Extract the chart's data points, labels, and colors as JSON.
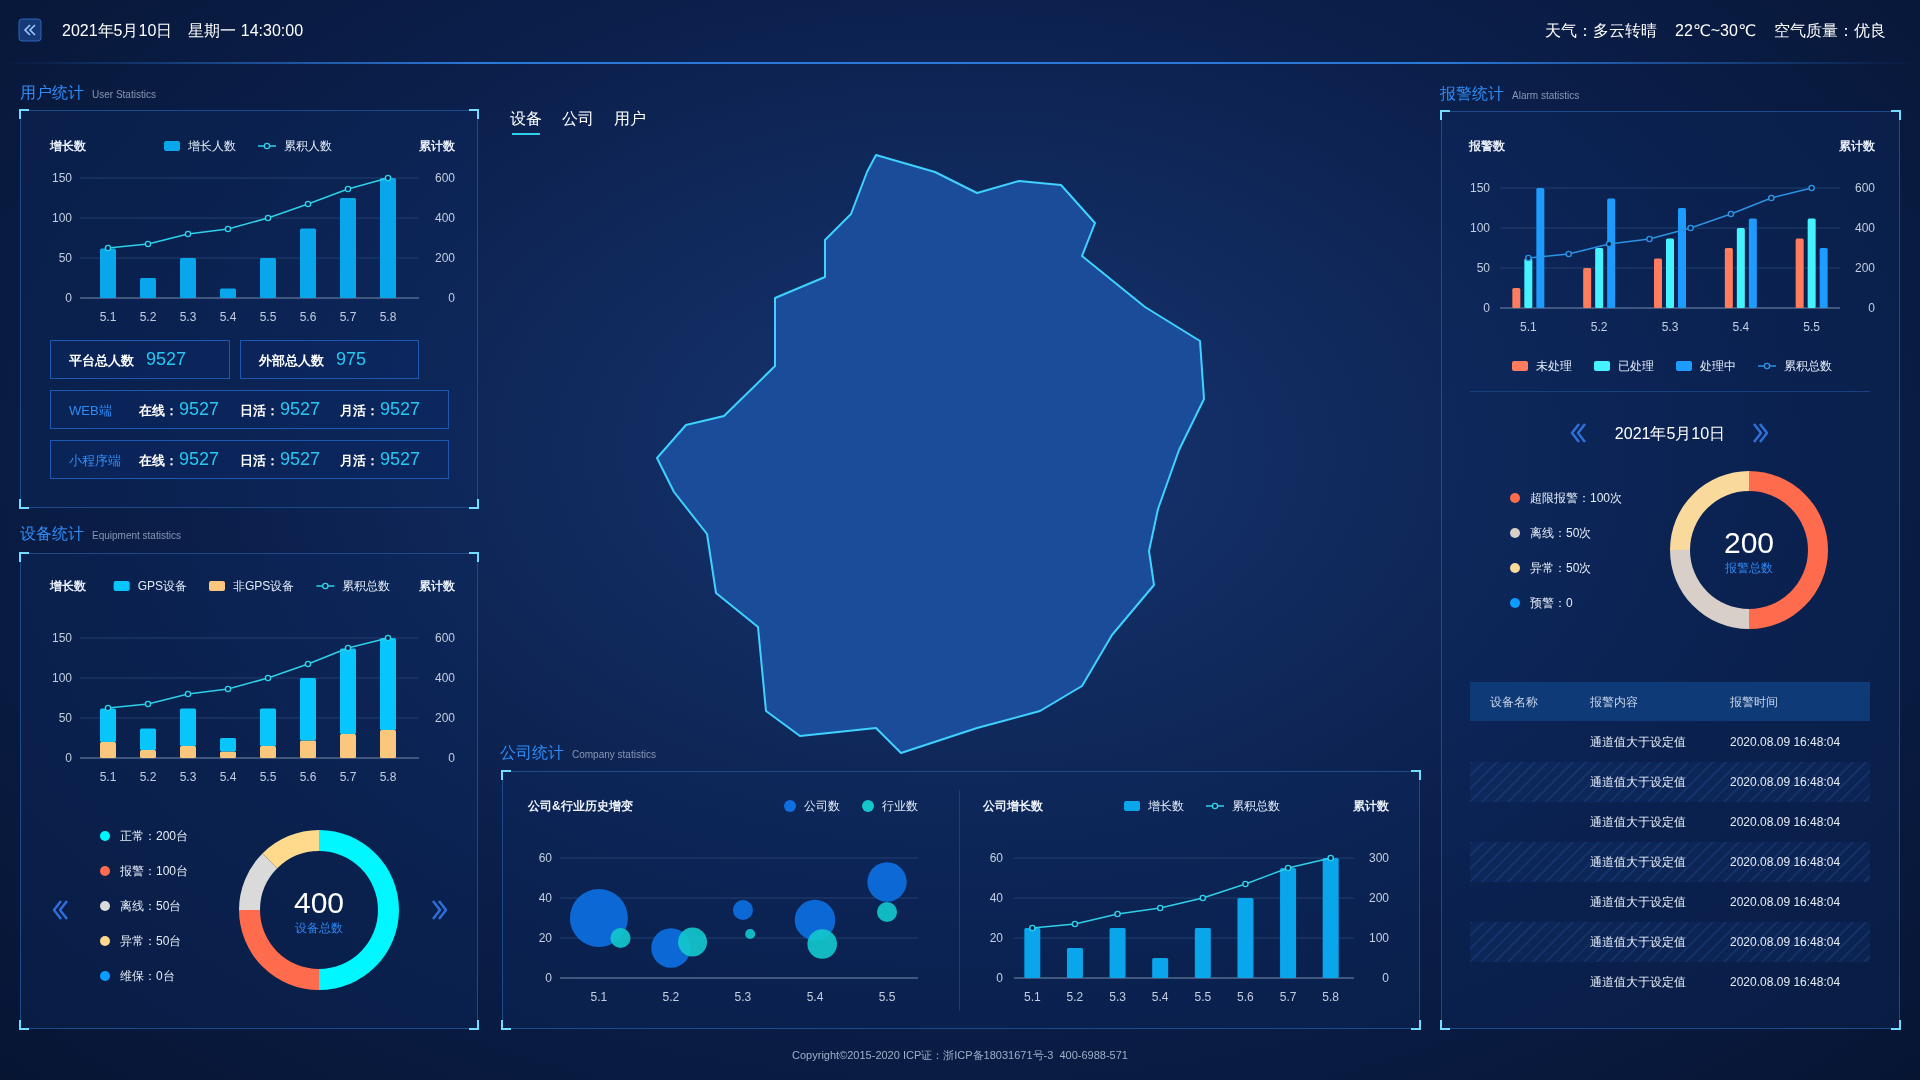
{
  "chart_data": [
    {
      "type": "other",
      "annotations": [
        "2021年5月10日",
        "星期一 14:30:00"
      ]
    },
    {
      "type": "other",
      "annotations": [
        "天气：多云转晴",
        "22℃~30℃",
        "空气质量：优良"
      ]
    },
    {
      "type": "bar",
      "title": "用户统计",
      "subtitle": "User Statistics",
      "ylabel": "增长数",
      "y2label": "累计数",
      "categories": [
        "5.1",
        "5.2",
        "5.3",
        "5.4",
        "5.5",
        "5.6",
        "5.7",
        "5.8"
      ],
      "series": [
        {
          "name": "增长人数",
          "color": "#0aa6ec",
          "values": [
            62,
            25,
            50,
            12,
            50,
            87,
            125,
            150
          ]
        },
        {
          "name": "累积人数",
          "type": "line",
          "axis": "y2",
          "color": "#2fd0ea",
          "values": [
            250,
            270,
            320,
            345,
            400,
            470,
            545,
            600
          ]
        }
      ],
      "ylim": [
        0,
        150
      ],
      "yticks": [
        0,
        50,
        100,
        150
      ],
      "y2lim": [
        0,
        600
      ],
      "y2ticks": [
        0,
        200,
        400,
        600
      ],
      "grid": "y",
      "legend": "top",
      "marker": "circle"
    },
    {
      "type": "other",
      "cell_labels": [
        [
          "平台总人数",
          "9527",
          "外部总人数",
          "975"
        ],
        [
          "WEB端",
          "在线：",
          "9527",
          "日活：",
          "9527",
          "月活：",
          "9527"
        ],
        [
          "小程序端",
          "在线：",
          "9527",
          "日活：",
          "9527",
          "月活：",
          "9527"
        ]
      ]
    },
    {
      "type": "other",
      "annotations": [
        "设备",
        "公司",
        "用户"
      ]
    },
    {
      "type": "bar",
      "title": "报警统计",
      "subtitle": "Alarm statistics",
      "ylabel": "报警数",
      "y2label": "累计数",
      "x": [
        5.1,
        5.2,
        5.3,
        5.4,
        5.5
      ],
      "xlim": [
        5.06,
        5.54
      ],
      "xticks": [
        5.1,
        5.2,
        5.3,
        5.4,
        5.5
      ],
      "series": [
        {
          "name": "未处理",
          "color": "#ff7d5e",
          "values": [
            25,
            50,
            62,
            75,
            87
          ]
        },
        {
          "name": "已处理",
          "color": "#45f2ff",
          "values": [
            62,
            75,
            87,
            100,
            112
          ]
        },
        {
          "name": "处理中",
          "color": "#1e9bff",
          "values": [
            150,
            137,
            125,
            112,
            75
          ]
        },
        {
          "name": "累积总数",
          "type": "line",
          "axis": "y2",
          "color": "#2a93e4",
          "x": [
            5.1,
            5.157,
            5.214,
            5.271,
            5.329,
            5.386,
            5.443,
            5.5
          ],
          "values": [
            250,
            270,
            320,
            345,
            400,
            470,
            550,
            600
          ]
        }
      ],
      "ylim": [
        0,
        150
      ],
      "yticks": [
        0,
        50,
        100,
        150
      ],
      "y2lim": [
        0,
        600
      ],
      "y2ticks": [
        0,
        200,
        400,
        600
      ],
      "grid": "y",
      "legend": "bottom",
      "marker": "circle"
    },
    {
      "type": "other",
      "annotations": [
        "2021年5月10日"
      ]
    },
    {
      "type": "donut",
      "categories": [
        "超限报警：100次",
        "离线：50次",
        "异常：50次",
        "预警：0"
      ],
      "values": [
        100,
        50,
        50,
        0
      ],
      "colors": [
        "#ff6b4d",
        "#d8d0c8",
        "#f9d99c",
        "#0b9dff"
      ],
      "annotations": [
        "200",
        "报警总数"
      ],
      "legend": "left"
    },
    {
      "type": "other",
      "categories": [
        "设备名称",
        "报警内容",
        "报警时间"
      ],
      "cell_labels": [
        [
          null,
          "通道值大于设定值",
          "2020.08.09 16:48:04"
        ],
        [
          null,
          "通道值大于设定值",
          "2020.08.09 16:48:04"
        ],
        [
          null,
          "通道值大于设定值",
          "2020.08.09 16:48:04"
        ],
        [
          null,
          "通道值大于设定值",
          "2020.08.09 16:48:04"
        ],
        [
          null,
          "通道值大于设定值",
          "2020.08.09 16:48:04"
        ],
        [
          null,
          "通道值大于设定值",
          "2020.08.09 16:48:04"
        ],
        [
          null,
          "通道值大于设定值",
          "2020.08.09 16:48:04"
        ]
      ]
    },
    {
      "type": "bar",
      "stacked": true,
      "title": "设备统计",
      "subtitle": "Equipment statistics",
      "ylabel": "增长数",
      "y2label": "累计数",
      "categories": [
        "5.1",
        "5.2",
        "5.3",
        "5.4",
        "5.5",
        "5.6",
        "5.7",
        "5.8"
      ],
      "series": [
        {
          "name": "非GPS设备",
          "color": "#fbc77c",
          "values": [
            20,
            10,
            15,
            8,
            15,
            22,
            30,
            35
          ]
        },
        {
          "name": "GPS设备",
          "color": "#08c6fb",
          "values": [
            42,
            27,
            47,
            17,
            47,
            78,
            107,
            115
          ]
        },
        {
          "name": "累积总数",
          "type": "line",
          "axis": "y2",
          "color": "#2fd0ea",
          "values": [
            250,
            270,
            320,
            345,
            400,
            470,
            550,
            600
          ]
        }
      ],
      "ylim": [
        0,
        150
      ],
      "yticks": [
        0,
        50,
        100,
        150
      ],
      "y2lim": [
        0,
        600
      ],
      "y2ticks": [
        0,
        200,
        400,
        600
      ],
      "grid": "y",
      "legend": "top",
      "marker": "circle"
    },
    {
      "type": "donut",
      "categories": [
        "正常：200台",
        "报警：100台",
        "离线：50台",
        "异常：50台",
        "维保：0台"
      ],
      "values": [
        200,
        100,
        50,
        50,
        0
      ],
      "colors": [
        "#00f7ff",
        "#ff6b4d",
        "#dadada",
        "#ffd98c",
        "#0b9dff"
      ],
      "annotations": [
        "400",
        "设备总数"
      ],
      "legend": "left"
    },
    {
      "type": "other",
      "title": "公司统计",
      "subtitle": "Company statistics"
    },
    {
      "type": "bubble",
      "title": "公司&行业历史增变",
      "xlim": [
        5.046,
        5.543
      ],
      "xticks": [
        5.1,
        5.2,
        5.3,
        5.4,
        5.5
      ],
      "ylim": [
        0,
        60
      ],
      "yticks": [
        0,
        20,
        40,
        60
      ],
      "grid": "y",
      "legend": "top right",
      "series": [
        {
          "name": "公司数",
          "color": "#0d6fe0",
          "x": [
            5.1,
            5.2,
            5.3,
            5.4,
            5.5
          ],
          "values": [
            30,
            15,
            34,
            29,
            48
          ],
          "sizes": [
            1,
            0.46,
            0.12,
            0.49,
            0.46
          ]
        },
        {
          "name": "行业数",
          "color": "#13c7cd",
          "x": [
            5.13,
            5.23,
            5.31,
            5.41,
            5.5
          ],
          "values": [
            20,
            18,
            22,
            17,
            33
          ],
          "sizes": [
            0.12,
            0.25,
            0.03,
            0.26,
            0.12
          ]
        }
      ]
    },
    {
      "type": "bar",
      "title": "公司增长数",
      "y2label": "累计数",
      "categories": [
        "5.1",
        "5.2",
        "5.3",
        "5.4",
        "5.5",
        "5.6",
        "5.7",
        "5.8"
      ],
      "series": [
        {
          "name": "增长数",
          "color": "#0aa6ec",
          "values": [
            25,
            15,
            25,
            10,
            25,
            40,
            55,
            60
          ]
        },
        {
          "name": "累积总数",
          "type": "line",
          "axis": "y2",
          "color": "#2fd0ea",
          "values": [
            125,
            135,
            160,
            175,
            200,
            235,
            275,
            300
          ]
        }
      ],
      "ylim": [
        0,
        60
      ],
      "yticks": [
        0,
        20,
        40,
        60
      ],
      "y2lim": [
        0,
        300
      ],
      "y2ticks": [
        0,
        100,
        200,
        300
      ],
      "grid": "y",
      "legend": "top",
      "marker": "circle"
    },
    {
      "type": "other",
      "annotations": [
        "Copyright©2015-2020 ICP证：浙ICP备18031671号-3  400-6988-571"
      ]
    }
  ]
}
